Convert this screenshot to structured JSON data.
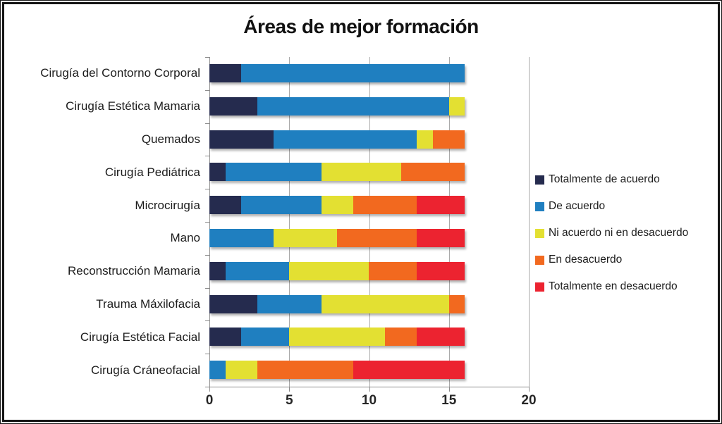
{
  "chart_data": {
    "type": "bar",
    "stacked": true,
    "orientation": "horizontal",
    "title": "Áreas de mejor formación",
    "categories": [
      "Cirugía del Contorno Corporal",
      "Cirugía Estética Mamaria",
      "Quemados",
      "Cirugía Pediátrica",
      "Microcirugía",
      "Mano",
      "Reconstrucción Mamaria",
      "Trauma Máxilofacia",
      "Cirugía Estética Facial",
      "Cirugía Cráneofacial"
    ],
    "series": [
      {
        "name": "Totalmente de acuerdo",
        "color": "#252b4e",
        "values": [
          2,
          3,
          4,
          1,
          2,
          0,
          1,
          3,
          2,
          0
        ]
      },
      {
        "name": "De acuerdo",
        "color": "#1f7fc0",
        "values": [
          14,
          12,
          9,
          6,
          5,
          4,
          4,
          4,
          3,
          1
        ]
      },
      {
        "name": "Ni acuerdo ni en desacuerdo",
        "color": "#e3e032",
        "values": [
          0,
          1,
          1,
          5,
          2,
          4,
          5,
          8,
          6,
          2
        ]
      },
      {
        "name": "En desacuerdo",
        "color": "#f2691f",
        "values": [
          0,
          0,
          2,
          4,
          4,
          5,
          3,
          1,
          2,
          6
        ]
      },
      {
        "name": "Totalmente en desacuerdo",
        "color": "#ec2330",
        "values": [
          0,
          0,
          0,
          0,
          3,
          3,
          3,
          0,
          3,
          7
        ]
      }
    ],
    "xlim": [
      0,
      20
    ],
    "xticks": [
      0,
      5,
      10,
      15,
      20
    ],
    "grid": "vertical",
    "legend_position": "right"
  }
}
